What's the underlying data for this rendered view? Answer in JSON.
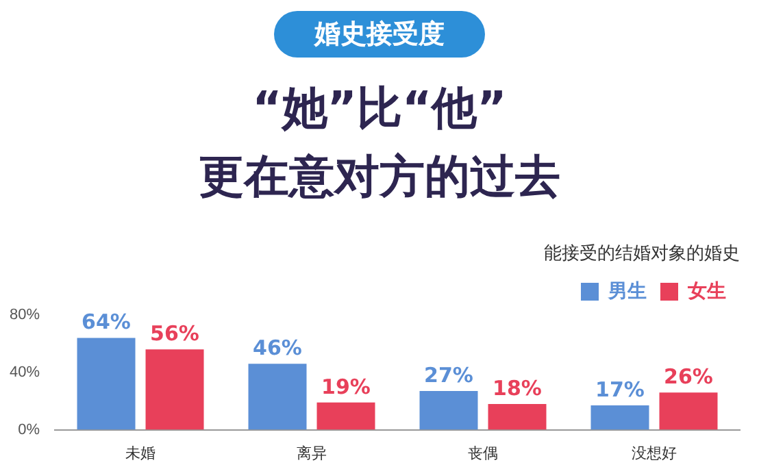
{
  "chart_data": {
    "type": "bar",
    "subtitle": "婚史接受度",
    "title": "“她”比“他”\n更在意对方的过去",
    "legend_title": "能接受的结婚对象的婚史",
    "categories": [
      "未婚",
      "离异",
      "丧偶",
      "没想好"
    ],
    "series": [
      {
        "name": "男生",
        "color": "#5b8fd6",
        "values": [
          64,
          46,
          27,
          17
        ],
        "value_labels": [
          "64%",
          "46%",
          "27%",
          "17%"
        ]
      },
      {
        "name": "女生",
        "color": "#e8405a",
        "values": [
          56,
          19,
          18,
          26
        ],
        "value_labels": [
          "56%",
          "19%",
          "18%",
          "26%"
        ]
      }
    ],
    "ylim": [
      0,
      80
    ],
    "yticks": [
      {
        "value": 0,
        "label": "0%"
      },
      {
        "value": 40,
        "label": "40%"
      },
      {
        "value": 80,
        "label": "80%"
      }
    ],
    "legend": "top right",
    "grid": false
  }
}
